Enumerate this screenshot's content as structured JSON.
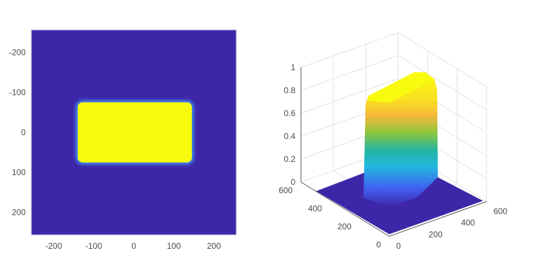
{
  "chart_data": [
    {
      "type": "heatmap",
      "title": "",
      "xlabel": "",
      "ylabel": "",
      "xlim": [
        -256,
        256
      ],
      "ylim": [
        -256,
        256
      ],
      "y_reversed": true,
      "xticks": [
        -200,
        -100,
        0,
        100,
        200
      ],
      "yticks": [
        -200,
        -100,
        0,
        100,
        200
      ],
      "colormap": "parula",
      "value_range": [
        0,
        1
      ],
      "region": {
        "shape": "rounded-rectangle",
        "x": [
          -140,
          145
        ],
        "y": [
          -75,
          75
        ],
        "value": 1
      },
      "background_value": 0,
      "colors": {
        "low": "#3e26a8",
        "high": "#f9fb0e"
      }
    },
    {
      "type": "surface3d",
      "title": "",
      "xlim": [
        0,
        600
      ],
      "ylim": [
        0,
        600
      ],
      "zlim": [
        0,
        1
      ],
      "xticks": [
        0,
        200,
        400,
        600
      ],
      "yticks": [
        0,
        200,
        400,
        600
      ],
      "zticks": [
        0,
        0.2,
        0.4,
        0.6,
        0.8,
        1
      ],
      "zticklabels": [
        "0",
        "0.2",
        "0.4",
        "0.6",
        "0.8",
        "1"
      ],
      "grid": true,
      "colormap": "parula",
      "peak_value": 1,
      "colors": [
        "#3e26a8",
        "#4060f2",
        "#22b8e0",
        "#22b5a4",
        "#8cc63c",
        "#f7b83a",
        "#f9fb0e"
      ]
    }
  ]
}
